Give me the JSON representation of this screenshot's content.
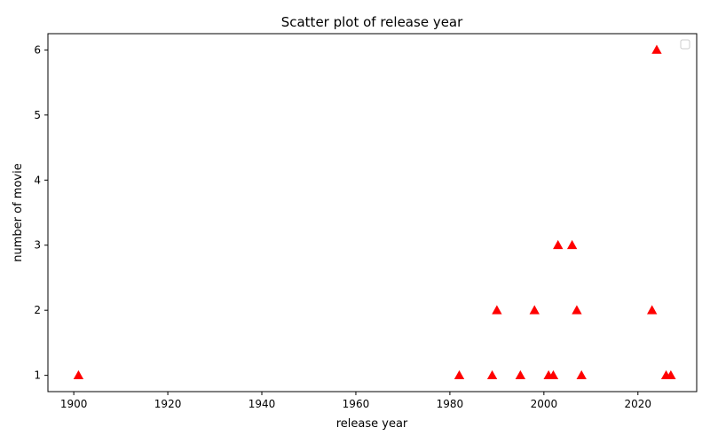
{
  "chart_data": {
    "type": "scatter",
    "title": "Scatter plot of release year",
    "xlabel": "release year",
    "ylabel": "number of movie",
    "xlim": [
      1894.5,
      2032.5
    ],
    "ylim": [
      0.75,
      6.25
    ],
    "xticks": [
      1900,
      1920,
      1940,
      1960,
      1980,
      2000,
      2020
    ],
    "yticks": [
      1,
      2,
      3,
      4,
      5,
      6
    ],
    "grid": false,
    "legend": "top-right",
    "legend_entries": [],
    "marker": "triangle-up",
    "marker_color": "#ff0000",
    "points": [
      {
        "x": 1901,
        "y": 1
      },
      {
        "x": 1982,
        "y": 1
      },
      {
        "x": 1989,
        "y": 1
      },
      {
        "x": 1990,
        "y": 2
      },
      {
        "x": 1995,
        "y": 1
      },
      {
        "x": 1998,
        "y": 2
      },
      {
        "x": 2001,
        "y": 1
      },
      {
        "x": 2002,
        "y": 1
      },
      {
        "x": 2003,
        "y": 3
      },
      {
        "x": 2006,
        "y": 3
      },
      {
        "x": 2007,
        "y": 2
      },
      {
        "x": 2008,
        "y": 1
      },
      {
        "x": 2023,
        "y": 2
      },
      {
        "x": 2024,
        "y": 6
      },
      {
        "x": 2026,
        "y": 1
      },
      {
        "x": 2027,
        "y": 1
      }
    ]
  }
}
